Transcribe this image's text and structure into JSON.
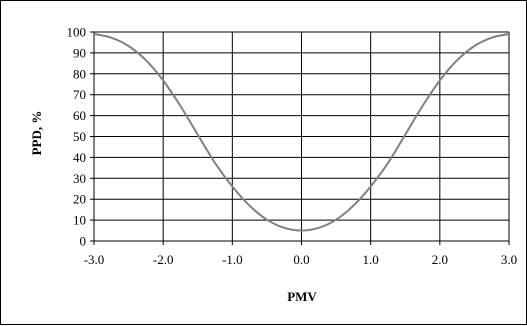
{
  "chart_data": {
    "type": "line",
    "title": "",
    "xlabel": "PMV",
    "ylabel": "PPD, %",
    "xlim": [
      -3.0,
      3.0
    ],
    "ylim": [
      0,
      100
    ],
    "x_ticks": [
      "-3.0",
      "-2.0",
      "-1.0",
      "0.0",
      "1.0",
      "2.0",
      "3.0"
    ],
    "y_ticks": [
      "0",
      "10",
      "20",
      "30",
      "40",
      "50",
      "60",
      "70",
      "80",
      "90",
      "100"
    ],
    "grid": true,
    "legend": "none",
    "series": [
      {
        "color": "#808080",
        "x": [
          -3.0,
          -2.75,
          -2.5,
          -2.25,
          -2.0,
          -1.75,
          -1.5,
          -1.25,
          -1.0,
          -0.75,
          -0.5,
          -0.25,
          0.0,
          0.25,
          0.5,
          0.75,
          1.0,
          1.25,
          1.5,
          1.75,
          2.0,
          2.25,
          2.5,
          2.75,
          3.0
        ],
        "y": [
          99.1,
          97.3,
          93.3,
          86.5,
          76.8,
          64.6,
          50.9,
          37.3,
          26.1,
          16.9,
          10.2,
          6.3,
          5.0,
          6.3,
          10.2,
          16.9,
          26.1,
          37.3,
          50.9,
          64.6,
          76.8,
          86.5,
          93.3,
          97.3,
          99.1
        ]
      }
    ]
  }
}
